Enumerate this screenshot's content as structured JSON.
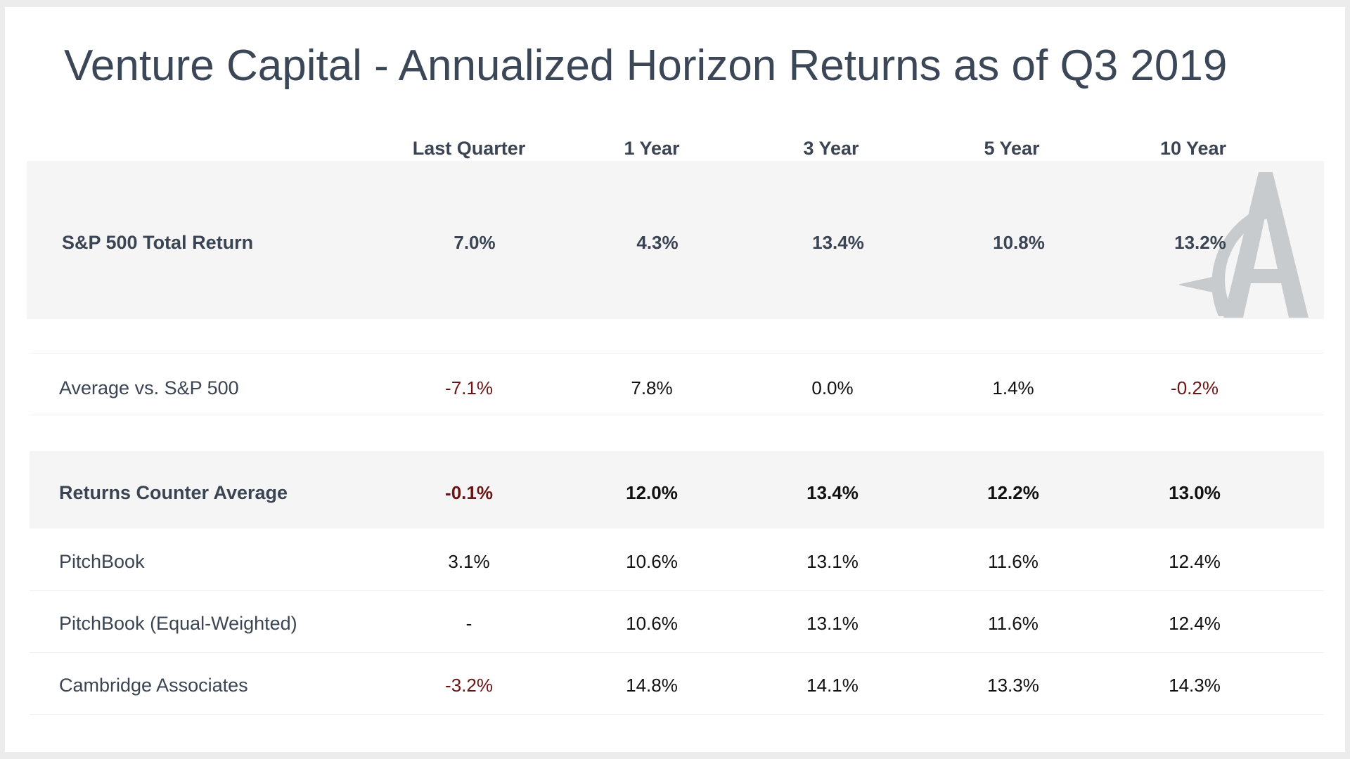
{
  "title": "Venture Capital - Annualized Horizon Returns as of Q3 2019",
  "colors": {
    "negative": "#6b1414",
    "text": "#3a4453",
    "band": "#f5f5f5",
    "watermark": "#c8cbce"
  },
  "chart_data": {
    "type": "table",
    "columns": [
      "Last Quarter",
      "1 Year",
      "3 Year",
      "5 Year",
      "10 Year"
    ],
    "rows": [
      {
        "label": "S&P 500 Total Return",
        "values": [
          "7.0%",
          "4.3%",
          "13.4%",
          "10.8%",
          "13.2%"
        ]
      },
      {
        "label": "Average vs. S&P 500",
        "values": [
          "-7.1%",
          "7.8%",
          "0.0%",
          "1.4%",
          "-0.2%"
        ]
      },
      {
        "label": "Returns Counter Average",
        "values": [
          "-0.1%",
          "12.0%",
          "13.4%",
          "12.2%",
          "13.0%"
        ]
      },
      {
        "label": "PitchBook",
        "values": [
          "3.1%",
          "10.6%",
          "13.1%",
          "11.6%",
          "12.4%"
        ]
      },
      {
        "label": "PitchBook (Equal-Weighted)",
        "values": [
          "-",
          "10.6%",
          "13.1%",
          "11.6%",
          "12.4%"
        ]
      },
      {
        "label": "Cambridge Associates",
        "values": [
          "-3.2%",
          "14.8%",
          "14.1%",
          "13.3%",
          "14.3%"
        ]
      }
    ]
  }
}
